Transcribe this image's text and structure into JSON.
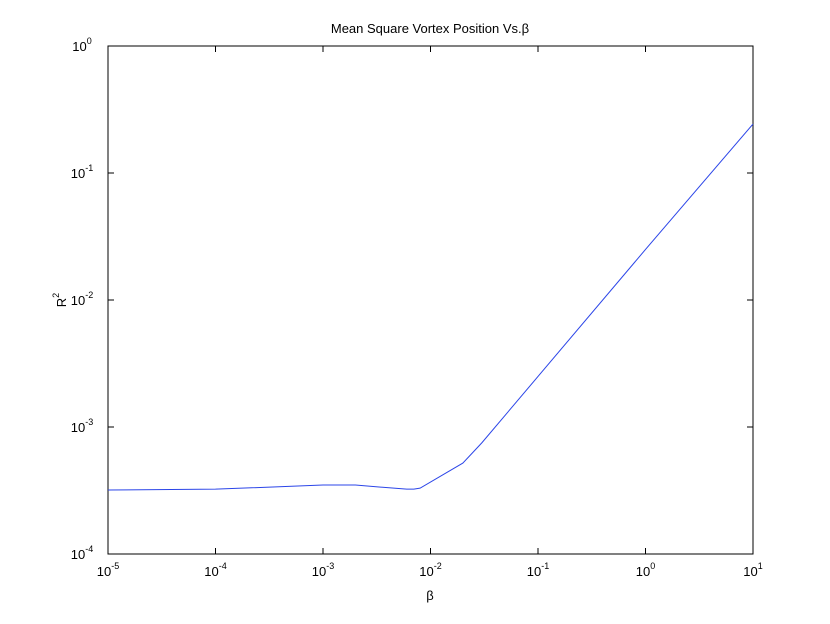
{
  "chart_data": {
    "type": "line",
    "title": "Mean Square Vortex Position Vs.β",
    "xlabel": "β",
    "ylabel": {
      "label": "R",
      "sup": "2"
    },
    "xscale": "log",
    "yscale": "log",
    "grid": false,
    "x": [
      1e-05,
      0.0001,
      0.001,
      0.002,
      0.006,
      0.007,
      0.008,
      0.02,
      0.03,
      0.1,
      1,
      10
    ],
    "series": [
      {
        "color": "#2b45e8",
        "values": [
          0.000319,
          0.000324,
          0.000349,
          0.000349,
          0.000324,
          0.000324,
          0.00033,
          0.00052,
          0.00075,
          0.0025,
          0.025,
          0.243
        ]
      }
    ],
    "xlim": [
      1e-05,
      10
    ],
    "ylim": [
      0.0001,
      1
    ],
    "xticks": [
      {
        "value": 1e-05,
        "label": "10",
        "sup": "-5"
      },
      {
        "value": 0.0001,
        "label": "10",
        "sup": "-4"
      },
      {
        "value": 0.001,
        "label": "10",
        "sup": "-3"
      },
      {
        "value": 0.01,
        "label": "10",
        "sup": "-2"
      },
      {
        "value": 0.1,
        "label": "10",
        "sup": "-1"
      },
      {
        "value": 1,
        "label": "10",
        "sup": "0"
      },
      {
        "value": 10,
        "label": "10",
        "sup": "1"
      }
    ],
    "yticks": [
      {
        "value": 0.0001,
        "label": "10",
        "sup": "-4"
      },
      {
        "value": 0.001,
        "label": "10",
        "sup": "-3"
      },
      {
        "value": 0.01,
        "label": "10",
        "sup": "-2"
      },
      {
        "value": 0.1,
        "label": "10",
        "sup": "-1"
      },
      {
        "value": 1,
        "label": "10",
        "sup": "0"
      }
    ]
  }
}
